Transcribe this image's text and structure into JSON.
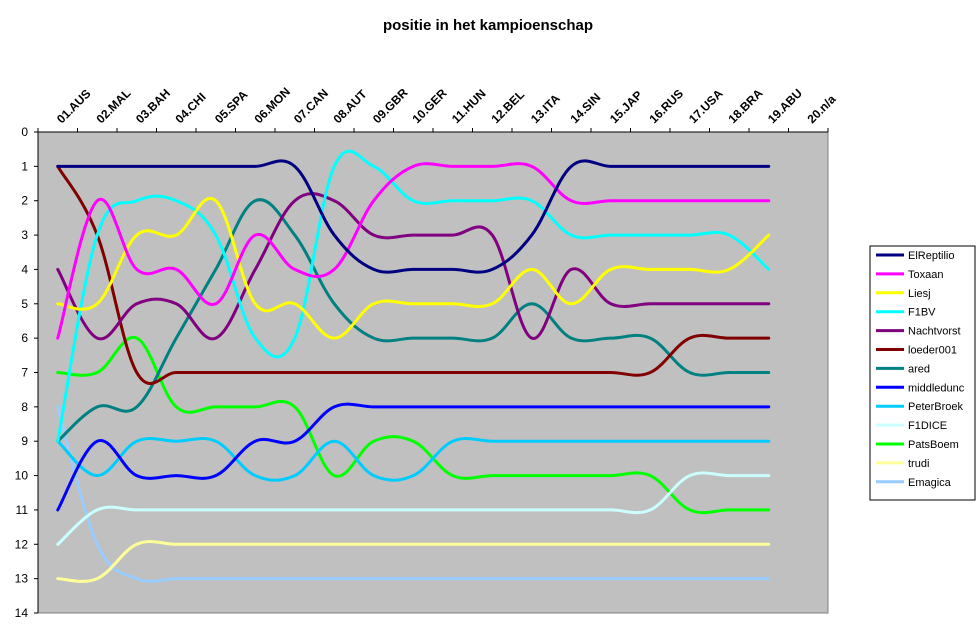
{
  "chart_data": {
    "type": "line",
    "title": "positie in het kampioenschap",
    "x_categories": [
      "01.AUS",
      "02.MAL",
      "03.BAH",
      "04.CHI",
      "05.SPA",
      "06.MON",
      "07.CAN",
      "08.AUT",
      "09.GBR",
      "10.GER",
      "11.HUN",
      "12.BEL",
      "13.ITA",
      "14.SIN",
      "15.JAP",
      "16.RUS",
      "17.USA",
      "18.BRA",
      "19.ABU",
      "20.n/a"
    ],
    "x_axis_position": "top",
    "y_axis": {
      "min": 0,
      "max": 14,
      "step": 1,
      "reversed": true
    },
    "grid": false,
    "plot_background": "#c0c0c0",
    "legend_position": "right",
    "series": [
      {
        "name": "ElReptilio",
        "color": "#000080",
        "values": [
          1,
          1,
          1,
          1,
          1,
          1,
          1,
          3,
          4,
          4,
          4,
          4,
          3,
          1,
          1,
          1,
          1,
          1,
          1
        ]
      },
      {
        "name": "Toxaan",
        "color": "#ff00ff",
        "values": [
          6,
          2,
          4,
          4,
          5,
          3,
          4,
          4,
          2,
          1,
          1,
          1,
          1,
          2,
          2,
          2,
          2,
          2,
          2
        ]
      },
      {
        "name": "Liesj",
        "color": "#ffff00",
        "values": [
          5,
          5,
          3,
          3,
          2,
          5,
          5,
          6,
          5,
          5,
          5,
          5,
          4,
          5,
          4,
          4,
          4,
          4,
          3
        ]
      },
      {
        "name": "F1BV",
        "color": "#00ffff",
        "values": [
          9,
          3,
          2,
          2,
          3,
          6,
          6,
          1,
          1,
          2,
          2,
          2,
          2,
          3,
          3,
          3,
          3,
          3,
          4
        ]
      },
      {
        "name": "Nachtvorst",
        "color": "#800080",
        "values": [
          4,
          6,
          5,
          5,
          6,
          4,
          2,
          2,
          3,
          3,
          3,
          3,
          6,
          4,
          5,
          5,
          5,
          5,
          5
        ]
      },
      {
        "name": "loeder001",
        "color": "#800000",
        "values": [
          1,
          3,
          7,
          7,
          7,
          7,
          7,
          7,
          7,
          7,
          7,
          7,
          7,
          7,
          7,
          7,
          6,
          6,
          6
        ]
      },
      {
        "name": "ared",
        "color": "#008080",
        "values": [
          9,
          8,
          8,
          6,
          4,
          2,
          3,
          5,
          6,
          6,
          6,
          6,
          5,
          6,
          6,
          6,
          7,
          7,
          7
        ]
      },
      {
        "name": "middledunc",
        "color": "#0000ff",
        "values": [
          11,
          9,
          10,
          10,
          10,
          9,
          9,
          8,
          8,
          8,
          8,
          8,
          8,
          8,
          8,
          8,
          8,
          8,
          8
        ]
      },
      {
        "name": "PeterBroek",
        "color": "#00ccff",
        "values": [
          9,
          10,
          9,
          9,
          9,
          10,
          10,
          9,
          10,
          10,
          9,
          9,
          9,
          9,
          9,
          9,
          9,
          9,
          9
        ]
      },
      {
        "name": "F1DICE",
        "color": "#ccffff",
        "values": [
          12,
          11,
          11,
          11,
          11,
          11,
          11,
          11,
          11,
          11,
          11,
          11,
          11,
          11,
          11,
          11,
          10,
          10,
          10
        ]
      },
      {
        "name": "PatsBoem",
        "color": "#00ff00",
        "values": [
          7,
          7,
          6,
          8,
          8,
          8,
          8,
          10,
          9,
          9,
          10,
          10,
          10,
          10,
          10,
          10,
          11,
          11,
          11
        ]
      },
      {
        "name": "trudi",
        "color": "#ffff99",
        "values": [
          13,
          13,
          12,
          12,
          12,
          12,
          12,
          12,
          12,
          12,
          12,
          12,
          12,
          12,
          12,
          12,
          12,
          12,
          12
        ]
      },
      {
        "name": "Emagica",
        "color": "#99ccff",
        "values": [
          8,
          12,
          13,
          13,
          13,
          13,
          13,
          13,
          13,
          13,
          13,
          13,
          13,
          13,
          13,
          13,
          13,
          13,
          13
        ]
      }
    ]
  }
}
